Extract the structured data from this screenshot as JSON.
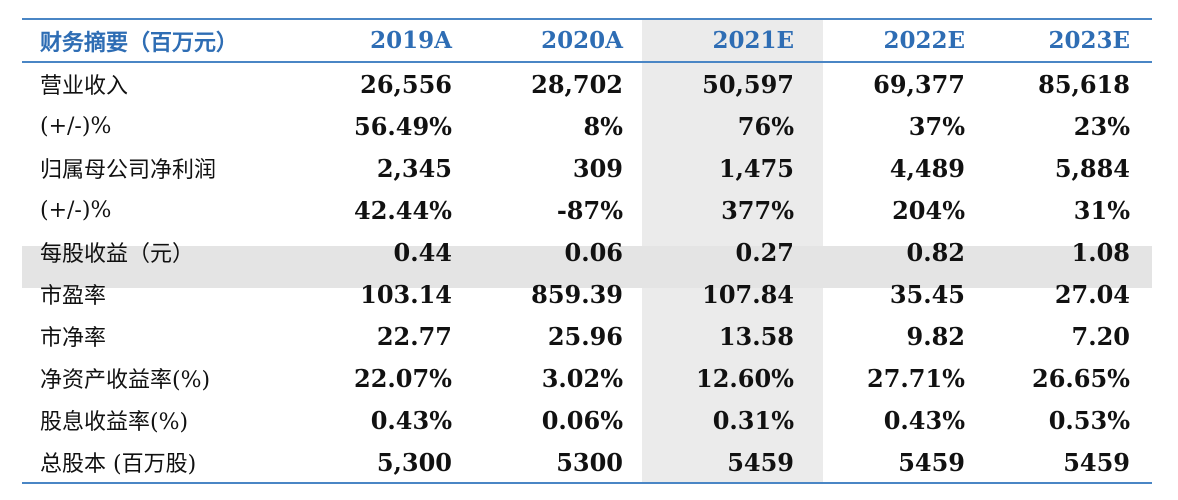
{
  "table": {
    "header": {
      "label": "财务摘要（百万元）",
      "years": [
        "2019A",
        "2020A",
        "2021E",
        "2022E",
        "2023E"
      ]
    },
    "rows": [
      {
        "label": "营业收入",
        "values": [
          "26,556",
          "28,702",
          "50,597",
          "69,377",
          "85,618"
        ]
      },
      {
        "label": "(+/-)%",
        "values": [
          "56.49%",
          "8%",
          "76%",
          "37%",
          "23%"
        ]
      },
      {
        "label": "归属母公司净利润",
        "values": [
          "2,345",
          "309",
          "1,475",
          "4,489",
          "5,884"
        ]
      },
      {
        "label": "(+/-)%",
        "values": [
          "42.44%",
          "-87%",
          "377%",
          "204%",
          "31%"
        ]
      },
      {
        "label": "每股收益（元）",
        "values": [
          "0.44",
          "0.06",
          "0.27",
          "0.82",
          "1.08"
        ]
      },
      {
        "label": "市盈率",
        "values": [
          "103.14",
          "859.39",
          "107.84",
          "35.45",
          "27.04"
        ]
      },
      {
        "label": "市净率",
        "values": [
          "22.77",
          "25.96",
          "13.58",
          "9.82",
          "7.20"
        ]
      },
      {
        "label": "净资产收益率(%)",
        "values": [
          "22.07%",
          "3.02%",
          "12.60%",
          "27.71%",
          "26.65%"
        ]
      },
      {
        "label": "股息收益率(%)",
        "values": [
          "0.43%",
          "0.06%",
          "0.31%",
          "0.43%",
          "0.53%"
        ]
      },
      {
        "label": "总股本 (百万股)",
        "values": [
          "5,300",
          "5300",
          "5459",
          "5459",
          "5459"
        ]
      }
    ]
  },
  "colors": {
    "header_text": "#2e6db4",
    "rule": "#4a86c5",
    "highlight_column": "#ebebeb",
    "highlight_row": "#e4e4e4"
  }
}
